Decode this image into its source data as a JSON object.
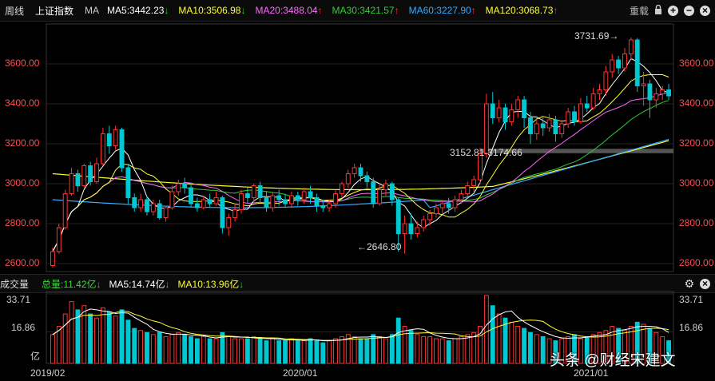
{
  "header": {
    "period": "周线",
    "index_name": "上证指数",
    "ma_label": "MA",
    "ma": [
      {
        "text": "MA5:3442.23",
        "arrow": "↓",
        "color": "#ffffff",
        "arrow_color": "#2ecc40"
      },
      {
        "text": "MA10:3506.98",
        "arrow": "↓",
        "color": "#ffff33",
        "arrow_color": "#2ecc40"
      },
      {
        "text": "MA20:3488.04",
        "arrow": "↑",
        "color": "#ff66ff",
        "arrow_color": "#ff3333"
      },
      {
        "text": "MA30:3421.57",
        "arrow": "↑",
        "color": "#33cc33",
        "arrow_color": "#ff3333"
      },
      {
        "text": "MA60:3227.90",
        "arrow": "↑",
        "color": "#33aaff",
        "arrow_color": "#ff3333"
      },
      {
        "text": "MA120:3068.73",
        "arrow": "↑",
        "color": "#ffff33",
        "arrow_color": "#ff3333"
      }
    ],
    "reset_label": "重载",
    "lock_icon": "lock-icon",
    "zoom_in_icon": "plus-circle-icon",
    "zoom_out_icon": "minus-circle-icon",
    "close_icon": "close-circle-icon"
  },
  "price_axis": {
    "labels": [
      "3600.00",
      "3400.00",
      "3200.00",
      "3000.00",
      "2800.00",
      "2600.00"
    ],
    "values": [
      3600,
      3400,
      3200,
      3000,
      2800,
      2600
    ],
    "label_color": "#ff4d4d"
  },
  "annotations": {
    "high": "3731.69→",
    "low": "←2646.80",
    "gap": "3152.81-3174.66"
  },
  "volume_header": {
    "label": "成交量",
    "total": "总量:11.42亿",
    "total_arrow": "↓",
    "ma5": "MA5:14.74亿",
    "ma5_arrow": "↓",
    "ma10": "MA10:13.96亿",
    "ma10_arrow": "↓",
    "settings_icon": "gear-icon",
    "close_icon": "close-circle-icon"
  },
  "volume_axis": {
    "labels": [
      "33.71",
      "16.86",
      "亿"
    ]
  },
  "x_axis": {
    "labels": [
      "2019/02",
      "2020/01",
      "2021/01"
    ]
  },
  "watermark": "头条 @财经宋建文",
  "colors": {
    "up": "#ff3333",
    "down": "#00c8d2",
    "ma5": "#ffffff",
    "ma10": "#ffff33",
    "ma20": "#ff66ff",
    "ma30": "#33cc33",
    "ma60": "#33aaff",
    "ma120": "#ffff33"
  },
  "chart_data": {
    "type": "candlestick",
    "title": "上证指数 周线",
    "ylim": [
      2560,
      3800
    ],
    "candles": [
      [
        2590,
        2660,
        2580,
        2680
      ],
      [
        2660,
        2780,
        2650,
        2800
      ],
      [
        2780,
        2950,
        2770,
        2970
      ],
      [
        2950,
        3050,
        2940,
        3080
      ],
      [
        3050,
        2990,
        2960,
        3070
      ],
      [
        2990,
        3090,
        2980,
        3100
      ],
      [
        3090,
        3010,
        2990,
        3110
      ],
      [
        3010,
        3100,
        3000,
        3130
      ],
      [
        3100,
        3250,
        3090,
        3280
      ],
      [
        3250,
        3190,
        3150,
        3290
      ],
      [
        3190,
        3270,
        3170,
        3290
      ],
      [
        3270,
        3080,
        3060,
        3280
      ],
      [
        3080,
        2930,
        2900,
        3100
      ],
      [
        2930,
        2880,
        2860,
        2950
      ],
      [
        2880,
        2920,
        2860,
        2950
      ],
      [
        2920,
        2860,
        2840,
        2940
      ],
      [
        2860,
        2900,
        2840,
        2920
      ],
      [
        2900,
        2830,
        2820,
        2920
      ],
      [
        2830,
        2880,
        2810,
        2890
      ],
      [
        2880,
        2960,
        2870,
        2990
      ],
      [
        2960,
        3000,
        2940,
        3020
      ],
      [
        3000,
        2980,
        2950,
        3030
      ],
      [
        2980,
        2900,
        2880,
        3000
      ],
      [
        2900,
        2880,
        2860,
        2930
      ],
      [
        2880,
        2920,
        2870,
        2940
      ],
      [
        2920,
        2900,
        2880,
        2950
      ],
      [
        2900,
        2930,
        2890,
        2960
      ],
      [
        2930,
        2780,
        2750,
        2940
      ],
      [
        2780,
        2830,
        2740,
        2850
      ],
      [
        2830,
        2870,
        2810,
        2900
      ],
      [
        2870,
        2950,
        2850,
        2970
      ],
      [
        2950,
        2930,
        2900,
        2980
      ],
      [
        2930,
        2990,
        2910,
        3000
      ],
      [
        2990,
        2930,
        2910,
        3010
      ],
      [
        2930,
        2880,
        2860,
        2960
      ],
      [
        2880,
        2940,
        2860,
        2960
      ],
      [
        2940,
        2920,
        2890,
        2970
      ],
      [
        2920,
        2900,
        2880,
        2950
      ],
      [
        2900,
        2940,
        2880,
        2960
      ],
      [
        2940,
        2920,
        2890,
        2960
      ],
      [
        2920,
        2960,
        2900,
        2980
      ],
      [
        2960,
        2930,
        2900,
        2990
      ],
      [
        2930,
        2890,
        2860,
        2950
      ],
      [
        2890,
        2880,
        2860,
        2920
      ],
      [
        2880,
        2900,
        2860,
        2920
      ],
      [
        2900,
        2950,
        2880,
        2970
      ],
      [
        2950,
        3000,
        2930,
        3010
      ],
      [
        3000,
        3050,
        2980,
        3070
      ],
      [
        3050,
        3080,
        3030,
        3100
      ],
      [
        3080,
        3040,
        3010,
        3100
      ],
      [
        3040,
        3010,
        2980,
        3060
      ],
      [
        3010,
        2900,
        2880,
        3030
      ],
      [
        2900,
        2970,
        2890,
        3000
      ],
      [
        2970,
        3000,
        2940,
        3020
      ],
      [
        3000,
        2920,
        2890,
        3010
      ],
      [
        2920,
        2750,
        2660,
        2930
      ],
      [
        2750,
        2800,
        2650,
        2840
      ],
      [
        2800,
        2750,
        2720,
        2850
      ],
      [
        2750,
        2780,
        2730,
        2810
      ],
      [
        2780,
        2820,
        2760,
        2840
      ],
      [
        2820,
        2850,
        2790,
        2870
      ],
      [
        2850,
        2880,
        2830,
        2900
      ],
      [
        2880,
        2900,
        2850,
        2920
      ],
      [
        2900,
        2880,
        2850,
        2930
      ],
      [
        2880,
        2920,
        2860,
        2940
      ],
      [
        2920,
        2950,
        2900,
        2970
      ],
      [
        2950,
        2990,
        2930,
        3010
      ],
      [
        2990,
        3020,
        2960,
        3040
      ],
      [
        3020,
        3150,
        3000,
        3180
      ],
      [
        3150,
        3400,
        3130,
        3450
      ],
      [
        3400,
        3330,
        3300,
        3460
      ],
      [
        3330,
        3380,
        3310,
        3420
      ],
      [
        3380,
        3310,
        3270,
        3400
      ],
      [
        3310,
        3370,
        3290,
        3400
      ],
      [
        3370,
        3420,
        3330,
        3440
      ],
      [
        3420,
        3330,
        3280,
        3440
      ],
      [
        3330,
        3250,
        3200,
        3360
      ],
      [
        3250,
        3300,
        3220,
        3330
      ],
      [
        3300,
        3280,
        3240,
        3330
      ],
      [
        3280,
        3320,
        3260,
        3350
      ],
      [
        3320,
        3250,
        3210,
        3340
      ],
      [
        3250,
        3300,
        3230,
        3320
      ],
      [
        3300,
        3360,
        3280,
        3380
      ],
      [
        3360,
        3310,
        3290,
        3390
      ],
      [
        3310,
        3400,
        3300,
        3430
      ],
      [
        3400,
        3380,
        3360,
        3440
      ],
      [
        3380,
        3450,
        3370,
        3480
      ],
      [
        3450,
        3470,
        3420,
        3500
      ],
      [
        3470,
        3560,
        3440,
        3590
      ],
      [
        3560,
        3620,
        3530,
        3650
      ],
      [
        3620,
        3580,
        3550,
        3640
      ],
      [
        3580,
        3650,
        3560,
        3680
      ],
      [
        3650,
        3720,
        3620,
        3732
      ],
      [
        3720,
        3490,
        3460,
        3730
      ],
      [
        3490,
        3500,
        3390,
        3560
      ],
      [
        3500,
        3420,
        3330,
        3520
      ],
      [
        3420,
        3450,
        3380,
        3480
      ],
      [
        3450,
        3470,
        3420,
        3490
      ],
      [
        3470,
        3440,
        3420,
        3500
      ]
    ],
    "volume_range": [
      0,
      33.71
    ],
    "volume": [
      14,
      18,
      24,
      30,
      26,
      28,
      24,
      22,
      27,
      25,
      23,
      26,
      21,
      17,
      16,
      15,
      14,
      15,
      13,
      14,
      15,
      14,
      13,
      12,
      13,
      12,
      12,
      15,
      13,
      12,
      12,
      12,
      13,
      12,
      11,
      12,
      11,
      11,
      12,
      11,
      11,
      12,
      11,
      10,
      11,
      12,
      13,
      14,
      13,
      12,
      12,
      14,
      13,
      12,
      14,
      22,
      18,
      16,
      14,
      13,
      13,
      12,
      12,
      11,
      12,
      13,
      14,
      15,
      18,
      33,
      28,
      24,
      22,
      20,
      18,
      17,
      15,
      14,
      13,
      12,
      11,
      12,
      13,
      14,
      12,
      13,
      14,
      15,
      16,
      18,
      17,
      16,
      18,
      20,
      19,
      17,
      15,
      13,
      11
    ]
  }
}
